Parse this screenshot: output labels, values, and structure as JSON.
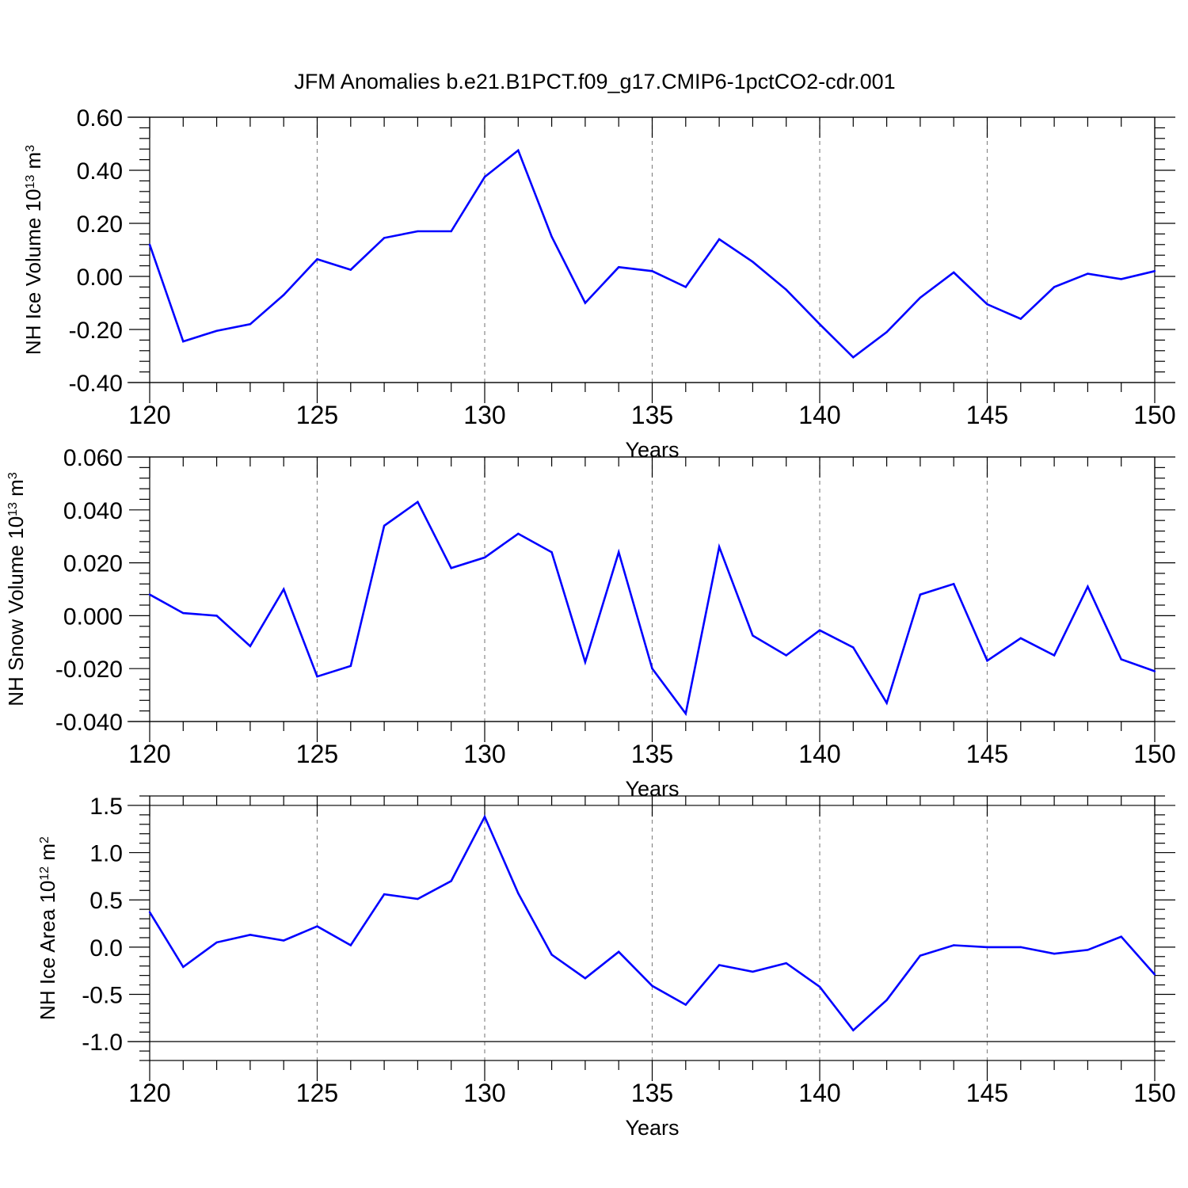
{
  "title": "JFM Anomalies b.e21.B1PCT.f09_g17.CMIP6-1pctCO2-cdr.001",
  "colors": {
    "line": "#0000ff",
    "axis": "#000000",
    "grid": "#888888",
    "background": "#ffffff"
  },
  "chart_data": [
    {
      "type": "line",
      "ylabel": {
        "main": "NH Ice Volume 10",
        "sup": "13",
        "unit": " m",
        "unit_sup": "3"
      },
      "xlabel": "Years",
      "xlim": [
        120,
        150
      ],
      "ylim": [
        -0.4,
        0.6
      ],
      "xticks": [
        120,
        125,
        130,
        135,
        140,
        145,
        150
      ],
      "xtick_labels": [
        "120",
        "125",
        "130",
        "135",
        "140",
        "145",
        "150"
      ],
      "yticks": [
        -0.4,
        -0.2,
        0.0,
        0.2,
        0.4,
        0.6
      ],
      "ytick_labels": [
        "-0.40",
        "-0.20",
        "0.00",
        "0.20",
        "0.40",
        "0.60"
      ],
      "grid_x": [
        125,
        130,
        135,
        140,
        145
      ],
      "x": [
        120,
        121,
        122,
        123,
        124,
        125,
        126,
        127,
        128,
        129,
        130,
        131,
        132,
        133,
        134,
        135,
        136,
        137,
        138,
        139,
        140,
        141,
        142,
        143,
        144,
        145,
        146,
        147,
        148,
        149,
        150
      ],
      "values": [
        0.12,
        -0.245,
        -0.205,
        -0.18,
        -0.07,
        0.065,
        0.025,
        0.145,
        0.17,
        0.17,
        0.375,
        0.475,
        0.15,
        -0.1,
        0.035,
        0.02,
        -0.04,
        0.14,
        0.055,
        -0.05,
        -0.18,
        -0.305,
        -0.21,
        -0.08,
        0.015,
        -0.105,
        -0.16,
        -0.04,
        0.01,
        -0.01,
        0.02
      ]
    },
    {
      "type": "line",
      "ylabel": {
        "main": "NH Snow Volume 10",
        "sup": "13",
        "unit": " m",
        "unit_sup": "3"
      },
      "xlabel": "Years",
      "xlim": [
        120,
        150
      ],
      "ylim": [
        -0.04,
        0.06
      ],
      "xticks": [
        120,
        125,
        130,
        135,
        140,
        145,
        150
      ],
      "xtick_labels": [
        "120",
        "125",
        "130",
        "135",
        "140",
        "145",
        "150"
      ],
      "yticks": [
        -0.04,
        -0.02,
        0.0,
        0.02,
        0.04,
        0.06
      ],
      "ytick_labels": [
        "-0.040",
        "-0.020",
        "0.000",
        "0.020",
        "0.040",
        "0.060"
      ],
      "grid_x": [
        125,
        130,
        135,
        140,
        145
      ],
      "x": [
        120,
        121,
        122,
        123,
        124,
        125,
        126,
        127,
        128,
        129,
        130,
        131,
        132,
        133,
        134,
        135,
        136,
        137,
        138,
        139,
        140,
        141,
        142,
        143,
        144,
        145,
        146,
        147,
        148,
        149,
        150
      ],
      "values": [
        0.008,
        0.001,
        0.0,
        -0.0115,
        0.01,
        -0.023,
        -0.019,
        0.034,
        0.043,
        0.018,
        0.022,
        0.031,
        0.024,
        -0.0175,
        0.024,
        -0.02,
        -0.037,
        0.026,
        -0.0075,
        -0.015,
        -0.0055,
        -0.012,
        -0.033,
        0.008,
        0.012,
        -0.017,
        -0.0085,
        -0.015,
        0.011,
        -0.0165,
        -0.021
      ]
    },
    {
      "type": "line",
      "ylabel": {
        "main": "NH Ice Area 10",
        "sup": "12",
        "unit": " m",
        "unit_sup": "2"
      },
      "xlabel": "Years",
      "xlim": [
        120,
        150
      ],
      "ylim": [
        -1.2,
        1.6
      ],
      "xticks": [
        120,
        125,
        130,
        135,
        140,
        145,
        150
      ],
      "xtick_labels": [
        "120",
        "125",
        "130",
        "135",
        "140",
        "145",
        "150"
      ],
      "yticks": [
        -1.0,
        -0.5,
        0.0,
        0.5,
        1.0,
        1.5
      ],
      "ytick_labels": [
        "-1.0",
        "-0.5",
        "0.0",
        "0.5",
        "1.0",
        "1.5"
      ],
      "grid_x": [
        125,
        130,
        135,
        140,
        145
      ],
      "x": [
        120,
        121,
        122,
        123,
        124,
        125,
        126,
        127,
        128,
        129,
        130,
        131,
        132,
        133,
        134,
        135,
        136,
        137,
        138,
        139,
        140,
        141,
        142,
        143,
        144,
        145,
        146,
        147,
        148,
        149,
        150
      ],
      "values": [
        0.37,
        -0.21,
        0.05,
        0.13,
        0.07,
        0.22,
        0.02,
        0.56,
        0.51,
        0.7,
        1.38,
        0.57,
        -0.08,
        -0.33,
        -0.05,
        -0.41,
        -0.61,
        -0.19,
        -0.26,
        -0.17,
        -0.42,
        -0.88,
        -0.56,
        -0.09,
        0.02,
        0.0,
        0.0,
        -0.07,
        -0.03,
        0.11,
        -0.29
      ]
    }
  ]
}
